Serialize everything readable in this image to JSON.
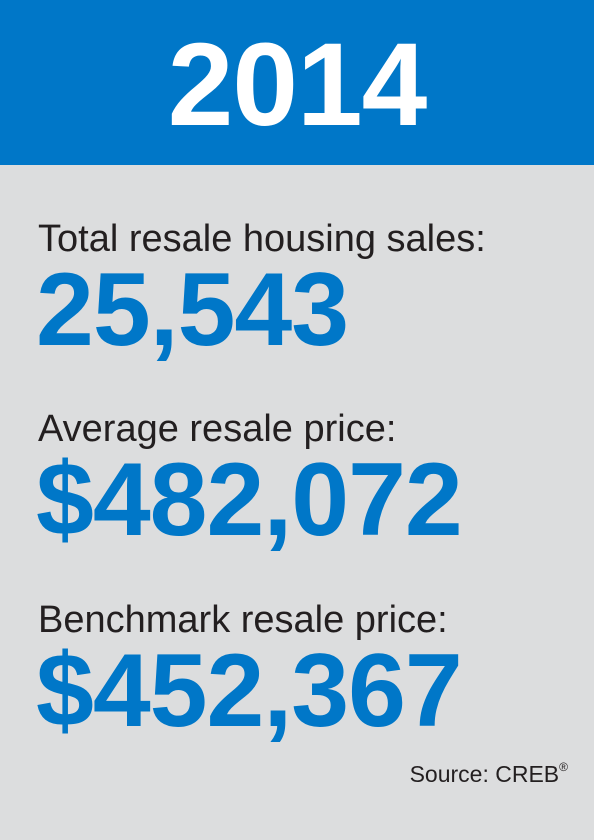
{
  "header": {
    "year": "2014"
  },
  "stats": [
    {
      "label": "Total resale housing sales:",
      "value": "25,543"
    },
    {
      "label": "Average resale price:",
      "value": "$482,072"
    },
    {
      "label": "Benchmark resale price:",
      "value": "$452,367"
    }
  ],
  "footer": {
    "source_text": "Source: CREB",
    "registered_mark": "®"
  },
  "colors": {
    "brand_blue": "#0077c8",
    "background_gray": "#dcddde",
    "text_dark": "#231f20"
  }
}
